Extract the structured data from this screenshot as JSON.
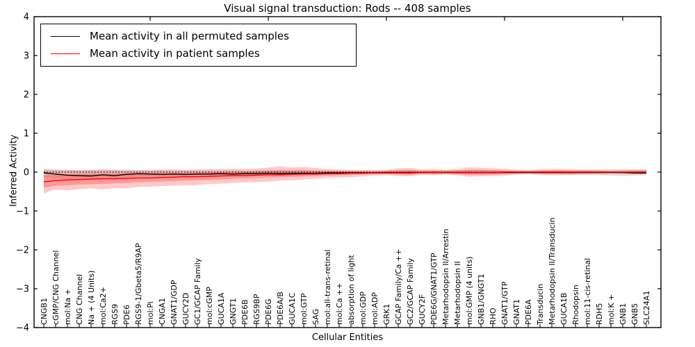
{
  "figure": {
    "title": "Visual signal transduction: Rods -- 408 samples",
    "xlabel": "Cellular Entities",
    "ylabel": "Inferred Activity"
  },
  "legend": {
    "entries": [
      {
        "label": "Mean activity in all permuted samples",
        "color": "#000000"
      },
      {
        "label": "Mean activity in patient samples",
        "color": "#ff0000"
      }
    ]
  },
  "axes": {
    "ylim": [
      -4,
      4
    ],
    "ytick_labels": [
      "4",
      "3",
      "2",
      "1",
      "0",
      "−1",
      "−2",
      "−3",
      "−4"
    ]
  },
  "chart_data": {
    "type": "line",
    "title": "Visual signal transduction: Rods -- 408 samples",
    "xlabel": "Cellular Entities",
    "ylabel": "Inferred Activity",
    "ylim": [
      -4,
      4
    ],
    "yticks": [
      4,
      3,
      2,
      1,
      0,
      -1,
      -2,
      -3,
      -4
    ],
    "grid": false,
    "legend_position": "upper left",
    "categories": [
      "CNGB1",
      "cGMP/CNG Channel",
      "mol:Na +",
      "CNG Channel",
      "Na + (4 Units)",
      "mol:Ca2+",
      "RGS9",
      "PDE6",
      "RGS9-1/Gbeta5/R9AP",
      "mol:Pi",
      "CNGA1",
      "GNAT1/GDP",
      "GUCY2D",
      "GC1/GCAP Family",
      "mol:cGMP",
      "GUCA1A",
      "GNGT1",
      "PDE6B",
      "RGS9BP",
      "PDE6G",
      "PDE6A/B",
      "GUCA1C",
      "mol:GTP",
      "SAG",
      "mol:all-trans-retinal",
      "mol:Ca ++",
      "absorption of light",
      "mol:GDP",
      "mol:ADP",
      "GRK1",
      "GCAP Family/Ca ++",
      "GC2/GCAP Family",
      "GUCY2F",
      "PDE6G/GNAT1/GTP",
      "Metarhodopsin II/Arrestin",
      "Metarhodopsin II",
      "mol:GMP (4 units)",
      "GNB1/GNGT1",
      "RHO",
      "GNAT1/GTP",
      "GNAT1",
      "PDE6A",
      "Transducin",
      "Metarhodopsin II/Transducin",
      "GUCA1B",
      "Rhodopsin",
      "mol:11-cis-retinal",
      "RDH5",
      "mol:K +",
      "GNB1",
      "GNB5",
      "SLC24A1"
    ],
    "series": [
      {
        "name": "Mean activity in all permuted samples",
        "color": "#000000",
        "values": [
          -0.02,
          -0.05,
          -0.08,
          -0.09,
          -0.1,
          -0.07,
          -0.09,
          -0.06,
          -0.04,
          -0.05,
          -0.06,
          -0.05,
          -0.06,
          -0.05,
          -0.05,
          -0.04,
          -0.05,
          -0.04,
          -0.04,
          -0.03,
          -0.04,
          -0.03,
          -0.03,
          -0.03,
          -0.02,
          -0.02,
          -0.02,
          -0.02,
          -0.02,
          -0.01,
          -0.01,
          -0.01,
          -0.01,
          -0.01,
          -0.01,
          -0.01,
          -0.01,
          -0.01,
          -0.01,
          -0.01,
          -0.01,
          -0.01,
          -0.01,
          -0.01,
          -0.01,
          -0.01,
          -0.01,
          -0.01,
          -0.01,
          -0.01,
          -0.02,
          -0.02
        ]
      },
      {
        "name": "Mean activity in patient samples",
        "color": "#ff0000",
        "values": [
          -0.25,
          -0.22,
          -0.2,
          -0.19,
          -0.18,
          -0.17,
          -0.17,
          -0.16,
          -0.15,
          -0.15,
          -0.14,
          -0.13,
          -0.12,
          -0.12,
          -0.11,
          -0.1,
          -0.09,
          -0.09,
          -0.08,
          -0.07,
          -0.07,
          -0.06,
          -0.05,
          -0.05,
          -0.04,
          -0.04,
          -0.03,
          -0.03,
          -0.02,
          -0.02,
          -0.02,
          -0.02,
          -0.01,
          -0.01,
          -0.01,
          -0.01,
          -0.01,
          -0.01,
          -0.01,
          0,
          0,
          0,
          0,
          0,
          0,
          0,
          0,
          0,
          0,
          0,
          0,
          0
        ]
      }
    ],
    "bands": [
      {
        "name": "permuted-range",
        "color": "rgba(110,110,110,0.22)",
        "upper": [
          0.09,
          0.07,
          0.06,
          0.05,
          0.05,
          0.05,
          0.05,
          0.04,
          0.04,
          0.04,
          0.05,
          0.04,
          0.04,
          0.04,
          0.05,
          0.04,
          0.04,
          0.04,
          0.05,
          0.05,
          0.05,
          0.05,
          0.05,
          0.04,
          0.04,
          0.04,
          0.04,
          0.04,
          0.04,
          0.04,
          0.05,
          0.05,
          0.04,
          0.04,
          0.04,
          0.05,
          0.05,
          0.05,
          0.05,
          0.04,
          0.04,
          0.04,
          0.05,
          0.05,
          0.05,
          0.05,
          0.06,
          0.07,
          0.08,
          0.08,
          0.07,
          0.07
        ],
        "lower": [
          -0.14,
          -0.16,
          -0.18,
          -0.17,
          -0.17,
          -0.15,
          -0.16,
          -0.13,
          -0.11,
          -0.11,
          -0.12,
          -0.11,
          -0.11,
          -0.1,
          -0.1,
          -0.09,
          -0.09,
          -0.08,
          -0.08,
          -0.07,
          -0.07,
          -0.06,
          -0.06,
          -0.06,
          -0.05,
          -0.05,
          -0.05,
          -0.05,
          -0.04,
          -0.04,
          -0.05,
          -0.05,
          -0.04,
          -0.04,
          -0.04,
          -0.05,
          -0.05,
          -0.05,
          -0.05,
          -0.04,
          -0.04,
          -0.04,
          -0.05,
          -0.05,
          -0.05,
          -0.06,
          -0.07,
          -0.08,
          -0.09,
          -0.1,
          -0.09,
          -0.08
        ]
      },
      {
        "name": "patient-range-outer",
        "color": "rgba(255,40,40,0.25)",
        "upper": [
          0.06,
          0.05,
          0.05,
          0.05,
          0.06,
          0.07,
          0.06,
          0.06,
          0.05,
          0.06,
          0.07,
          0.07,
          0.06,
          0.07,
          0.08,
          0.08,
          0.09,
          0.08,
          0.09,
          0.12,
          0.14,
          0.12,
          0.13,
          0.11,
          0.08,
          0.07,
          0.06,
          0.05,
          0.05,
          0.06,
          0.1,
          0.11,
          0.07,
          0.08,
          0.06,
          0.08,
          0.12,
          0.11,
          0.1,
          0.09,
          0.06,
          0.05,
          0.07,
          0.08,
          0.08,
          0.07,
          0.06,
          0.05,
          0.04,
          0.05,
          0.06,
          0.06
        ],
        "lower": [
          -0.55,
          -0.44,
          -0.47,
          -0.44,
          -0.42,
          -0.44,
          -0.41,
          -0.42,
          -0.38,
          -0.37,
          -0.36,
          -0.35,
          -0.34,
          -0.33,
          -0.31,
          -0.3,
          -0.28,
          -0.27,
          -0.26,
          -0.24,
          -0.22,
          -0.21,
          -0.19,
          -0.17,
          -0.15,
          -0.14,
          -0.13,
          -0.11,
          -0.09,
          -0.08,
          -0.1,
          -0.11,
          -0.07,
          -0.08,
          -0.06,
          -0.08,
          -0.12,
          -0.11,
          -0.1,
          -0.09,
          -0.06,
          -0.05,
          -0.07,
          -0.08,
          -0.08,
          -0.07,
          -0.06,
          -0.05,
          -0.04,
          -0.05,
          -0.06,
          -0.06
        ]
      },
      {
        "name": "patient-range-inner",
        "color": "rgba(255,40,40,0.30)",
        "upper": [
          -0.08,
          -0.07,
          -0.06,
          -0.05,
          -0.04,
          -0.04,
          -0.04,
          -0.03,
          -0.03,
          -0.03,
          -0.02,
          -0.02,
          -0.02,
          -0.01,
          0.0,
          0.0,
          0.01,
          0.01,
          0.02,
          0.04,
          0.05,
          0.04,
          0.05,
          0.04,
          0.03,
          0.02,
          0.02,
          0.02,
          0.02,
          0.02,
          0.05,
          0.05,
          0.03,
          0.04,
          0.03,
          0.04,
          0.06,
          0.06,
          0.05,
          0.04,
          0.03,
          0.02,
          0.03,
          0.04,
          0.04,
          0.03,
          0.03,
          0.02,
          0.02,
          0.02,
          0.03,
          0.03
        ],
        "lower": [
          -0.4,
          -0.35,
          -0.34,
          -0.32,
          -0.31,
          -0.3,
          -0.29,
          -0.28,
          -0.26,
          -0.25,
          -0.24,
          -0.23,
          -0.22,
          -0.21,
          -0.2,
          -0.19,
          -0.17,
          -0.16,
          -0.15,
          -0.14,
          -0.13,
          -0.12,
          -0.11,
          -0.1,
          -0.09,
          -0.08,
          -0.07,
          -0.06,
          -0.05,
          -0.05,
          -0.06,
          -0.07,
          -0.04,
          -0.05,
          -0.04,
          -0.05,
          -0.07,
          -0.07,
          -0.06,
          -0.05,
          -0.04,
          -0.03,
          -0.04,
          -0.05,
          -0.05,
          -0.04,
          -0.03,
          -0.03,
          -0.02,
          -0.03,
          -0.03,
          -0.03
        ]
      }
    ],
    "zero_line": {
      "y": 0,
      "style": "dotted",
      "color": "#000000"
    }
  }
}
